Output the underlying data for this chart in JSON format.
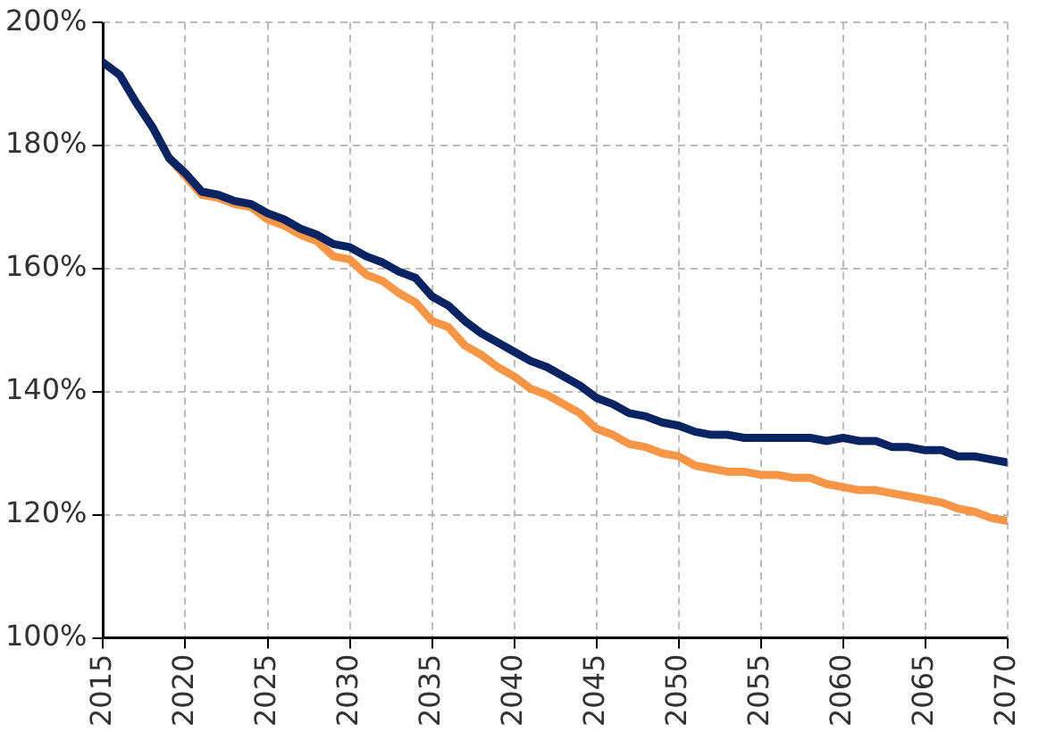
{
  "chart_data": {
    "type": "line",
    "x": [
      2015,
      2016,
      2017,
      2018,
      2019,
      2020,
      2021,
      2022,
      2023,
      2024,
      2025,
      2026,
      2027,
      2028,
      2029,
      2030,
      2031,
      2032,
      2033,
      2034,
      2035,
      2036,
      2037,
      2038,
      2039,
      2040,
      2041,
      2042,
      2043,
      2044,
      2045,
      2046,
      2047,
      2048,
      2049,
      2050,
      2051,
      2052,
      2053,
      2054,
      2055,
      2056,
      2057,
      2058,
      2059,
      2060,
      2061,
      2062,
      2063,
      2064,
      2065,
      2066,
      2067,
      2068,
      2069,
      2070
    ],
    "series": [
      {
        "color": "#f79646",
        "values": [
          null,
          null,
          null,
          null,
          178,
          175,
          172,
          171.5,
          170.5,
          170,
          168,
          167,
          165.5,
          164.5,
          162,
          161.5,
          159,
          158,
          156,
          154.5,
          151.5,
          150.5,
          147.5,
          146,
          144,
          142.5,
          140.5,
          139.5,
          138,
          136.5,
          134,
          133,
          131.5,
          131,
          130,
          129.5,
          128,
          127.5,
          127,
          127,
          126.5,
          126.5,
          126,
          126,
          125,
          124.5,
          124,
          124,
          123.5,
          123,
          122.5,
          122,
          121,
          120.5,
          119.5,
          119
        ]
      },
      {
        "color": "#0a2463",
        "values": [
          193.5,
          191.5,
          187,
          183,
          178,
          175.5,
          172.5,
          172,
          171,
          170.5,
          169,
          168,
          166.5,
          165.5,
          164,
          163.5,
          162,
          161,
          159.5,
          158.5,
          155.5,
          154,
          151.5,
          149.5,
          148,
          146.5,
          145,
          144,
          142.5,
          141,
          139,
          138,
          136.5,
          136,
          135,
          134.5,
          133.5,
          133,
          133,
          132.5,
          132.5,
          132.5,
          132.5,
          132.5,
          132,
          132.5,
          132,
          132,
          131,
          131,
          130.5,
          130.5,
          129.5,
          129.5,
          129,
          128.5
        ]
      }
    ],
    "xlim": [
      2015,
      2070
    ],
    "xticks": [
      2015,
      2020,
      2025,
      2030,
      2035,
      2040,
      2045,
      2050,
      2055,
      2060,
      2065,
      2070
    ],
    "ylim": [
      100,
      200
    ],
    "yticks": [
      {
        "value": 100,
        "label": "100%"
      },
      {
        "value": 120,
        "label": "120%"
      },
      {
        "value": 140,
        "label": "140%"
      },
      {
        "value": 160,
        "label": "160%"
      },
      {
        "value": 180,
        "label": "180%"
      },
      {
        "value": 200,
        "label": "200%"
      }
    ],
    "grid": true,
    "line_style": "solid",
    "marker": "none"
  }
}
